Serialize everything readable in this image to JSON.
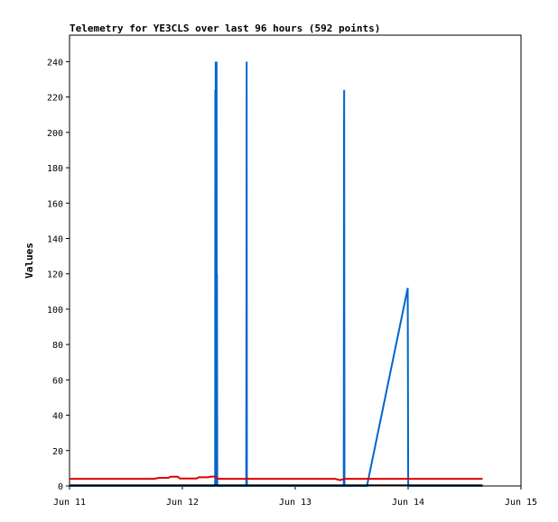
{
  "chart_data": {
    "type": "line",
    "title": "Telemetry for YE3CLS over last 96 hours (592 points)",
    "xlabel": "",
    "ylabel": "Values",
    "xlim": [
      "2025-06-11T00:00",
      "2025-06-15T00:00"
    ],
    "ylim": [
      0,
      255
    ],
    "x_ticks": [
      "Jun 11",
      "Jun 12",
      "Jun 13",
      "Jun 14",
      "Jun 15"
    ],
    "y_ticks": [
      0,
      20,
      40,
      60,
      80,
      100,
      120,
      140,
      160,
      180,
      200,
      220,
      240
    ],
    "grid": false,
    "series": [
      {
        "color": "#0066cc",
        "points": [
          [
            "2025-06-11T00:00",
            0
          ],
          [
            "2025-06-12T06:58",
            0
          ],
          [
            "2025-06-12T07:00",
            224
          ],
          [
            "2025-06-12T07:03",
            0
          ],
          [
            "2025-06-12T07:05",
            240
          ],
          [
            "2025-06-12T07:08",
            0
          ],
          [
            "2025-06-12T07:10",
            240
          ],
          [
            "2025-06-12T07:14",
            0
          ],
          [
            "2025-06-12T07:16",
            240
          ],
          [
            "2025-06-12T07:19",
            0
          ],
          [
            "2025-06-12T07:21",
            120
          ],
          [
            "2025-06-12T07:25",
            0
          ],
          [
            "2025-06-12T13:35",
            0
          ],
          [
            "2025-06-12T13:38",
            120
          ],
          [
            "2025-06-12T13:40",
            240
          ],
          [
            "2025-06-12T13:43",
            0
          ],
          [
            "2025-06-13T10:19",
            0
          ],
          [
            "2025-06-13T10:22",
            200
          ],
          [
            "2025-06-13T10:24",
            224
          ],
          [
            "2025-06-13T10:28",
            0
          ],
          [
            "2025-06-13T15:15",
            0
          ],
          [
            "2025-06-13T23:55",
            112
          ],
          [
            "2025-06-13T23:58",
            56
          ],
          [
            "2025-06-14T00:01",
            0
          ],
          [
            "2025-06-14T15:50",
            0
          ]
        ]
      },
      {
        "color": "#dd0000",
        "points": [
          [
            "2025-06-11T00:00",
            4
          ],
          [
            "2025-06-11T18:00",
            4
          ],
          [
            "2025-06-11T19:00",
            4.6
          ],
          [
            "2025-06-11T21:00",
            4.6
          ],
          [
            "2025-06-11T21:30",
            5.2
          ],
          [
            "2025-06-11T23:00",
            5.2
          ],
          [
            "2025-06-11T23:30",
            4.2
          ],
          [
            "2025-06-12T03:00",
            4.2
          ],
          [
            "2025-06-12T03:30",
            4.9
          ],
          [
            "2025-06-12T05:30",
            4.9
          ],
          [
            "2025-06-12T06:00",
            5.3
          ],
          [
            "2025-06-12T07:00",
            5.3
          ],
          [
            "2025-06-12T07:30",
            4
          ],
          [
            "2025-06-13T08:30",
            4
          ],
          [
            "2025-06-13T09:30",
            3.3
          ],
          [
            "2025-06-13T10:30",
            4
          ],
          [
            "2025-06-14T15:50",
            4
          ]
        ]
      },
      {
        "color": "#000000",
        "points": [
          [
            "2025-06-11T00:00",
            0.3
          ],
          [
            "2025-06-14T15:50",
            0.3
          ]
        ]
      }
    ]
  }
}
